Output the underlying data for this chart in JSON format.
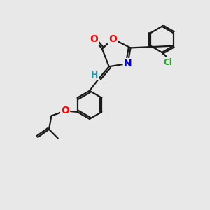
{
  "bg_color": "#e8e8e8",
  "bond_color": "#1a1a1a",
  "atom_colors": {
    "O": "#ff0000",
    "N": "#0000cd",
    "Cl": "#22aa22",
    "H": "#2196a6",
    "C": "#1a1a1a"
  },
  "lw": 1.6,
  "fs": 8.5
}
